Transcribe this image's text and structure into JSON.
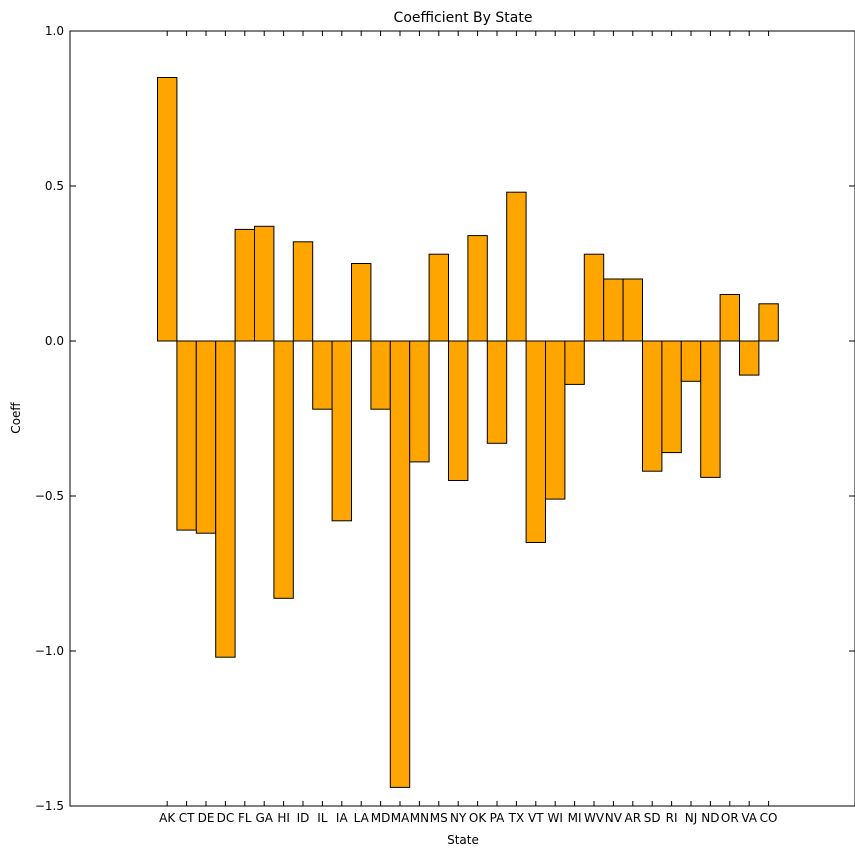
{
  "chart_data": {
    "type": "bar",
    "title": "Coefficient By State",
    "xlabel": "State",
    "ylabel": "Coeff",
    "ylim": [
      -1.5,
      1.0
    ],
    "yticks": [
      "1.0",
      "0.5",
      "0.0",
      "−0.5",
      "−1.0",
      "−1.5"
    ],
    "ytick_values": [
      1.0,
      0.5,
      0.0,
      -0.5,
      -1.0,
      -1.5
    ],
    "grid": false,
    "bar_color": "#ffa500",
    "edge_color": "#000000",
    "categories": [
      "AK",
      "CT",
      "DE",
      "DC",
      "FL",
      "GA",
      "HI",
      "ID",
      "IL",
      "IA",
      "LA",
      "MD",
      "MA",
      "MN",
      "MS",
      "NY",
      "OK",
      "PA",
      "TX",
      "VT",
      "WI",
      "MI",
      "WV",
      "NV",
      "AR",
      "SD",
      "RI",
      "NJ",
      "ND",
      "OR",
      "VA",
      "CO"
    ],
    "values": [
      0.85,
      -0.61,
      -0.62,
      -1.02,
      0.36,
      0.37,
      -0.83,
      0.32,
      -0.22,
      -0.58,
      0.25,
      -0.22,
      -1.44,
      -0.39,
      0.28,
      -0.45,
      0.34,
      -0.33,
      0.48,
      -0.65,
      -0.51,
      -0.14,
      0.28,
      0.2,
      0.2,
      -0.42,
      -0.36,
      -0.13,
      -0.44,
      0.15,
      -0.11,
      0.12
    ]
  }
}
